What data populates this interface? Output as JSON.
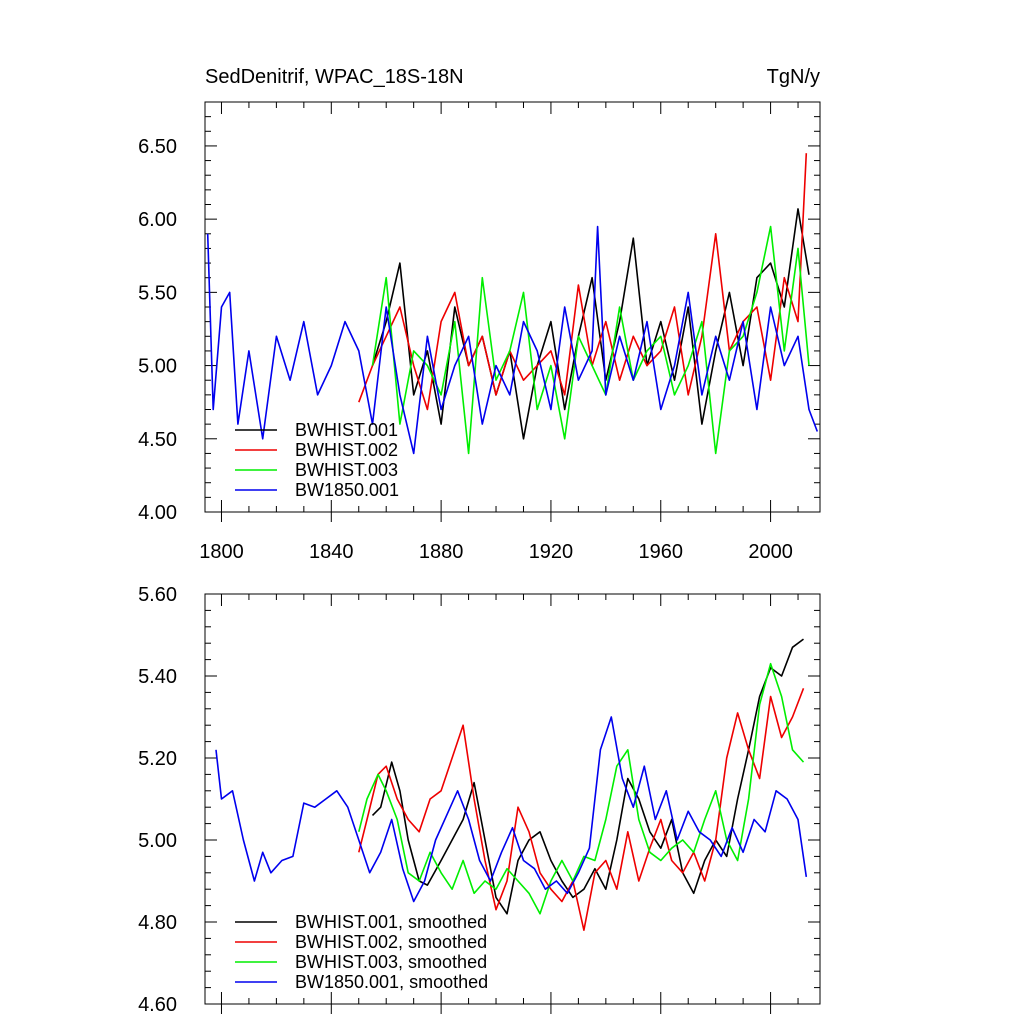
{
  "colors": {
    "BWHIST.001": "#000000",
    "BWHIST.002": "#ee0000",
    "BWHIST.003": "#00ee00",
    "BW1850.001": "#0000ee"
  },
  "chart_data": [
    {
      "type": "line",
      "title": "SedDenitrif, WPAC_18S-18N",
      "units": "TgN/y",
      "xlim": [
        1794,
        2018
      ],
      "ylim": [
        4.0,
        6.8
      ],
      "xticks": [
        1800,
        1840,
        1880,
        1920,
        1960,
        2000
      ],
      "xtick_labels": [
        "1800",
        "1840",
        "1880",
        "1920",
        "1960",
        "2000"
      ],
      "yticks": [
        4.0,
        4.5,
        5.0,
        5.5,
        6.0,
        6.5
      ],
      "ytick_labels": [
        "4.00",
        "4.50",
        "5.00",
        "5.50",
        "6.00",
        "6.50"
      ],
      "legend_position": "bottom-left",
      "series": [
        {
          "name": "BWHIST.001",
          "x": [
            1855,
            1860,
            1865,
            1870,
            1875,
            1880,
            1885,
            1890,
            1895,
            1900,
            1905,
            1910,
            1915,
            1920,
            1925,
            1930,
            1935,
            1940,
            1945,
            1950,
            1955,
            1960,
            1965,
            1970,
            1975,
            1980,
            1985,
            1990,
            1995,
            2000,
            2005,
            2010,
            2014
          ],
          "values": [
            5.0,
            5.3,
            5.7,
            4.8,
            5.1,
            4.6,
            5.4,
            5.0,
            5.2,
            4.8,
            5.1,
            4.5,
            5.0,
            5.3,
            4.7,
            5.2,
            5.6,
            4.9,
            5.3,
            5.87,
            5.0,
            5.3,
            4.9,
            5.4,
            4.6,
            5.1,
            5.5,
            5.0,
            5.6,
            5.7,
            5.4,
            6.07,
            5.62
          ]
        },
        {
          "name": "BWHIST.002",
          "x": [
            1850,
            1855,
            1860,
            1865,
            1870,
            1875,
            1880,
            1885,
            1890,
            1895,
            1900,
            1905,
            1910,
            1915,
            1920,
            1925,
            1930,
            1935,
            1940,
            1945,
            1950,
            1955,
            1960,
            1965,
            1970,
            1975,
            1980,
            1985,
            1990,
            1995,
            2000,
            2005,
            2010,
            2013
          ],
          "values": [
            4.75,
            5.0,
            5.2,
            5.4,
            5.0,
            4.7,
            5.3,
            5.5,
            5.0,
            5.2,
            4.8,
            5.1,
            4.9,
            5.0,
            5.1,
            4.8,
            5.55,
            5.0,
            5.3,
            4.9,
            5.2,
            5.0,
            5.1,
            5.4,
            4.8,
            5.2,
            5.9,
            5.1,
            5.3,
            5.4,
            4.9,
            5.6,
            5.3,
            6.45
          ]
        },
        {
          "name": "BWHIST.003",
          "x": [
            1855,
            1860,
            1865,
            1870,
            1875,
            1880,
            1885,
            1890,
            1895,
            1900,
            1905,
            1910,
            1915,
            1920,
            1925,
            1930,
            1935,
            1940,
            1945,
            1950,
            1955,
            1960,
            1965,
            1970,
            1975,
            1980,
            1985,
            1990,
            1995,
            2000,
            2005,
            2010,
            2014
          ],
          "values": [
            5.0,
            5.6,
            4.6,
            5.1,
            5.0,
            4.8,
            5.3,
            4.4,
            5.6,
            4.9,
            5.1,
            5.5,
            4.7,
            5.0,
            4.5,
            5.2,
            5.0,
            4.8,
            5.4,
            4.9,
            5.1,
            5.2,
            4.8,
            5.0,
            5.3,
            4.4,
            5.1,
            5.2,
            5.5,
            5.95,
            5.1,
            5.8,
            5.0
          ]
        },
        {
          "name": "BW1850.001",
          "x": [
            1795,
            1797,
            1800,
            1803,
            1806,
            1810,
            1815,
            1820,
            1825,
            1830,
            1835,
            1840,
            1845,
            1850,
            1855,
            1860,
            1865,
            1870,
            1875,
            1880,
            1885,
            1890,
            1895,
            1900,
            1905,
            1910,
            1915,
            1920,
            1925,
            1930,
            1935,
            1937,
            1940,
            1945,
            1950,
            1955,
            1960,
            1965,
            1970,
            1975,
            1980,
            1985,
            1990,
            1995,
            2000,
            2005,
            2010,
            2014,
            2017
          ],
          "values": [
            5.9,
            4.7,
            5.4,
            5.5,
            4.6,
            5.1,
            4.5,
            5.2,
            4.9,
            5.3,
            4.8,
            5.0,
            5.3,
            5.1,
            4.6,
            5.4,
            4.8,
            4.4,
            5.2,
            4.7,
            5.0,
            5.2,
            4.6,
            5.0,
            4.8,
            5.3,
            5.1,
            4.7,
            5.4,
            4.9,
            5.1,
            5.95,
            4.8,
            5.2,
            4.9,
            5.3,
            4.7,
            5.0,
            5.5,
            4.8,
            5.2,
            4.9,
            5.3,
            4.7,
            5.4,
            5.0,
            5.2,
            4.7,
            4.55
          ]
        }
      ]
    },
    {
      "type": "line",
      "title": "",
      "xlim": [
        1794,
        2018
      ],
      "ylim": [
        4.6,
        5.6
      ],
      "xticks": [
        1800,
        1840,
        1880,
        1920,
        1960,
        2000
      ],
      "yticks": [
        4.6,
        4.8,
        5.0,
        5.2,
        5.4,
        5.6
      ],
      "ytick_labels": [
        "4.60",
        "4.80",
        "5.00",
        "5.20",
        "5.40",
        "5.60"
      ],
      "legend_position": "bottom-left",
      "series": [
        {
          "name": "BWHIST.001, smoothed",
          "x": [
            1855,
            1858,
            1862,
            1865,
            1868,
            1872,
            1875,
            1880,
            1884,
            1888,
            1892,
            1896,
            1900,
            1904,
            1908,
            1912,
            1916,
            1920,
            1924,
            1928,
            1932,
            1936,
            1940,
            1944,
            1948,
            1952,
            1956,
            1960,
            1964,
            1968,
            1972,
            1976,
            1980,
            1984,
            1988,
            1992,
            1996,
            2000,
            2004,
            2008,
            2012
          ],
          "values": [
            5.06,
            5.08,
            5.19,
            5.12,
            5.0,
            4.9,
            4.89,
            4.95,
            5.0,
            5.05,
            5.14,
            5.0,
            4.86,
            4.82,
            4.95,
            5.0,
            5.02,
            4.95,
            4.9,
            4.86,
            4.88,
            4.93,
            4.88,
            5.0,
            5.15,
            5.1,
            5.02,
            4.98,
            5.05,
            4.92,
            4.87,
            4.95,
            5.0,
            4.96,
            5.1,
            5.22,
            5.35,
            5.42,
            5.4,
            5.47,
            5.49
          ]
        },
        {
          "name": "BWHIST.002, smoothed",
          "x": [
            1850,
            1853,
            1857,
            1860,
            1864,
            1868,
            1872,
            1876,
            1880,
            1884,
            1888,
            1892,
            1896,
            1900,
            1904,
            1908,
            1912,
            1916,
            1920,
            1924,
            1928,
            1932,
            1936,
            1940,
            1944,
            1948,
            1952,
            1956,
            1960,
            1964,
            1968,
            1972,
            1976,
            1980,
            1984,
            1988,
            1992,
            1996,
            2000,
            2004,
            2008,
            2012
          ],
          "values": [
            4.97,
            5.05,
            5.16,
            5.18,
            5.1,
            5.05,
            5.02,
            5.1,
            5.12,
            5.2,
            5.28,
            5.1,
            4.95,
            4.83,
            4.9,
            5.08,
            5.02,
            4.92,
            4.88,
            4.85,
            4.9,
            4.78,
            4.92,
            4.95,
            4.88,
            5.02,
            4.9,
            4.98,
            5.05,
            4.95,
            4.92,
            4.97,
            4.9,
            5.0,
            5.2,
            5.31,
            5.22,
            5.15,
            5.35,
            5.25,
            5.3,
            5.37
          ]
        },
        {
          "name": "BWHIST.003, smoothed",
          "x": [
            1850,
            1853,
            1857,
            1860,
            1864,
            1868,
            1872,
            1876,
            1880,
            1884,
            1888,
            1892,
            1896,
            1900,
            1904,
            1908,
            1912,
            1916,
            1920,
            1924,
            1928,
            1932,
            1936,
            1940,
            1944,
            1948,
            1952,
            1956,
            1960,
            1964,
            1968,
            1972,
            1976,
            1980,
            1984,
            1988,
            1992,
            1996,
            2000,
            2004,
            2008,
            2012
          ],
          "values": [
            5.02,
            5.1,
            5.16,
            5.12,
            5.05,
            4.92,
            4.9,
            4.97,
            4.92,
            4.88,
            4.95,
            4.87,
            4.9,
            4.88,
            4.93,
            4.9,
            4.87,
            4.82,
            4.9,
            4.95,
            4.9,
            4.96,
            4.95,
            5.05,
            5.18,
            5.22,
            5.05,
            4.97,
            4.95,
            4.98,
            5.0,
            4.97,
            5.05,
            5.12,
            5.0,
            4.95,
            5.1,
            5.33,
            5.43,
            5.35,
            5.22,
            5.19
          ]
        },
        {
          "name": "BW1850.001, smoothed",
          "x": [
            1798,
            1800,
            1804,
            1808,
            1812,
            1815,
            1818,
            1822,
            1826,
            1830,
            1834,
            1838,
            1842,
            1846,
            1850,
            1854,
            1858,
            1862,
            1866,
            1870,
            1874,
            1878,
            1882,
            1886,
            1890,
            1894,
            1898,
            1902,
            1906,
            1910,
            1914,
            1918,
            1922,
            1926,
            1930,
            1934,
            1938,
            1942,
            1946,
            1950,
            1954,
            1958,
            1962,
            1966,
            1970,
            1974,
            1978,
            1982,
            1986,
            1990,
            1994,
            1998,
            2002,
            2006,
            2010,
            2013
          ],
          "values": [
            5.22,
            5.1,
            5.12,
            5.0,
            4.9,
            4.97,
            4.92,
            4.95,
            4.96,
            5.09,
            5.08,
            5.1,
            5.12,
            5.08,
            5.0,
            4.92,
            4.97,
            5.05,
            4.93,
            4.85,
            4.9,
            5.0,
            5.06,
            5.12,
            5.05,
            4.95,
            4.9,
            4.97,
            5.03,
            4.95,
            4.93,
            4.88,
            4.9,
            4.87,
            4.92,
            4.98,
            5.22,
            5.3,
            5.15,
            5.08,
            5.18,
            5.05,
            5.12,
            5.0,
            5.07,
            5.02,
            5.0,
            4.96,
            5.03,
            4.97,
            5.05,
            5.02,
            5.12,
            5.1,
            5.05,
            4.91
          ]
        }
      ]
    }
  ]
}
